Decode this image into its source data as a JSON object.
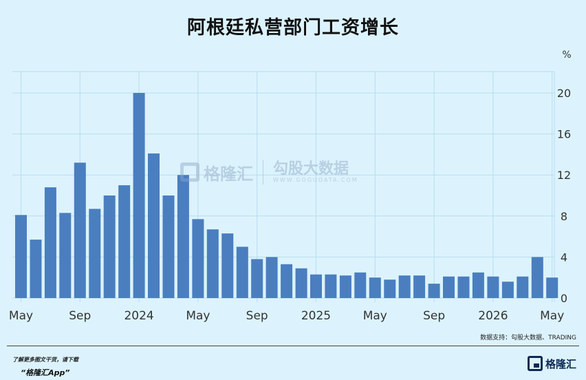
{
  "title": "阿根廷私营部门工资增长",
  "source": "数据支持：勾股大数据、TRADING",
  "footer": {
    "line1": "了解更多图文干货，请下载",
    "line2": "“格隆汇App”",
    "logo_text": "格隆汇"
  },
  "watermark": {
    "brand": "格隆汇",
    "name": "勾股大数据",
    "url": "WWW.GOGUDATA.COM"
  },
  "colors": {
    "bar": "#4a7ebf",
    "background": "#dcf3fd",
    "grid": "#b9dcee"
  },
  "chart_data": {
    "type": "bar",
    "ylabel": "%",
    "ylim": [
      0,
      20
    ],
    "yticks": [
      0,
      4,
      8,
      12,
      16,
      20
    ],
    "grid": true,
    "y_axis_position": "right",
    "xtick_labels": [
      "May",
      "Sep",
      "2024",
      "May",
      "Sep",
      "2025",
      "May",
      "Sep",
      "2026",
      "May"
    ],
    "values": [
      8.1,
      5.7,
      10.8,
      8.3,
      13.2,
      8.7,
      10.0,
      11.0,
      20.0,
      14.1,
      10.0,
      12.0,
      7.7,
      6.7,
      6.3,
      5.0,
      3.8,
      4.0,
      3.3,
      2.9,
      2.3,
      2.3,
      2.2,
      2.5,
      2.0,
      1.8,
      2.2,
      2.2,
      1.4,
      2.1,
      2.1,
      2.5,
      2.1,
      1.6,
      2.1,
      4.0,
      2.0
    ]
  }
}
